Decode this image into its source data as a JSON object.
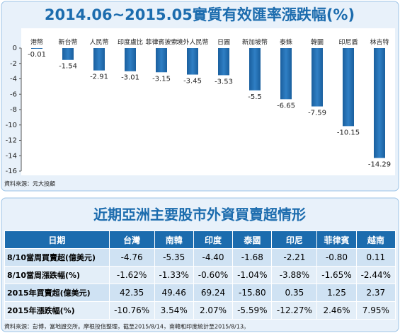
{
  "chart_data": {
    "type": "bar",
    "title": "2014.06~2015.05實質有效匯率漲跌幅(%)",
    "categories": [
      "港幣",
      "新台幣",
      "人民幣",
      "印度盧比",
      "菲律賓披索",
      "境外人民幣",
      "日圓",
      "新加坡幣",
      "泰銖",
      "韓圜",
      "印尼盾",
      "林吉特"
    ],
    "values": [
      -0.01,
      -1.54,
      -2.91,
      -3.01,
      -3.15,
      -3.45,
      -3.53,
      -5.5,
      -6.65,
      -7.59,
      -10.15,
      -14.29
    ],
    "color": "#2f7fc4",
    "ylim": [
      -16,
      0
    ],
    "yticks": [
      0,
      -2,
      -4,
      -6,
      -8,
      -10,
      -12,
      -14,
      -16
    ],
    "source": "資料來源：元大投顧"
  },
  "table": {
    "title": "近期亞洲主要股市外資買賣超情形",
    "header": [
      "日期",
      "台灣",
      "南韓",
      "印度",
      "泰國",
      "印尼",
      "菲律賓",
      "越南"
    ],
    "rows": [
      [
        "8/10當周買賣超(億美元)",
        "-4.76",
        "-5.35",
        "-4.40",
        "-1.68",
        "-2.21",
        "-0.80",
        "0.11"
      ],
      [
        "8/10當周漲跌幅(%)",
        "-1.62%",
        "-1.33%",
        "-0.60%",
        "-1.04%",
        "-3.88%",
        "-1.65%",
        "-2.44%"
      ],
      [
        "2015年買賣超(億美元)",
        "42.35",
        "49.46",
        "69.24",
        "-15.80",
        "0.35",
        "1.25",
        "2.37"
      ],
      [
        "2015年漲跌幅(%)",
        "-10.76%",
        "3.54%",
        "2.07%",
        "-5.59%",
        "-12.27%",
        "2.46%",
        "7.95%"
      ]
    ],
    "source": "資料來源：彭博，當地證交所。摩根投信整理，截至2015/8/14，南韓和印度統計至2015/8/13。"
  }
}
